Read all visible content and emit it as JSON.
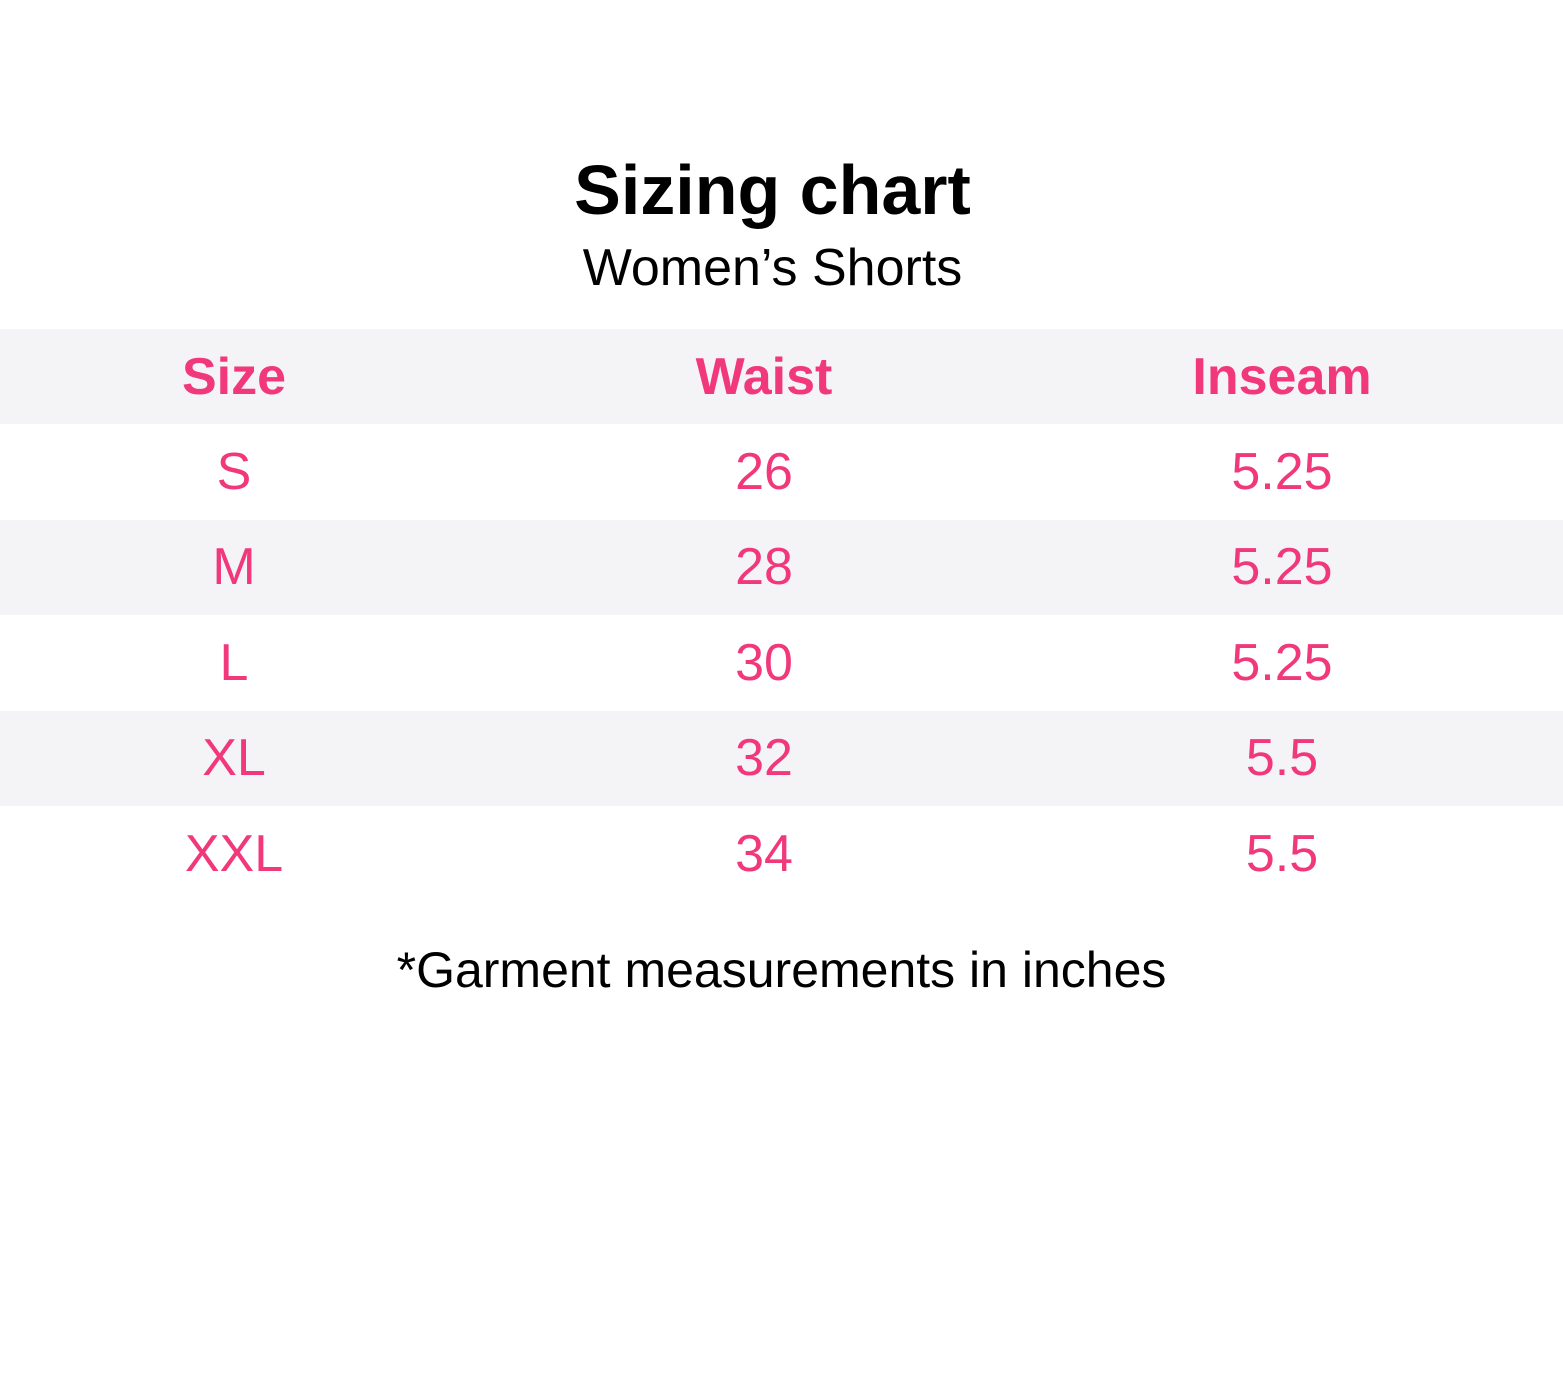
{
  "title": "Sizing chart",
  "subtitle": "Women’s Shorts",
  "colors": {
    "accent": "#f0387a",
    "row_shade": "#f4f4f6"
  },
  "table": {
    "headers": [
      "Size",
      "Waist",
      "Inseam"
    ],
    "rows": [
      [
        "S",
        "26",
        "5.25"
      ],
      [
        "M",
        "28",
        "5.25"
      ],
      [
        "L",
        "30",
        "5.25"
      ],
      [
        "XL",
        "32",
        "5.5"
      ],
      [
        "XXL",
        "34",
        "5.5"
      ]
    ]
  },
  "footnote": "*Garment measurements in inches"
}
